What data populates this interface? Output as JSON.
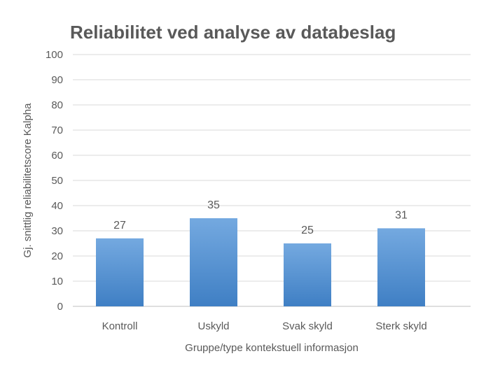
{
  "chart_data": {
    "type": "bar",
    "title": "Reliabilitet ved analyse av databeslag",
    "xlabel": "Gruppe/type kontekstuell informasjon",
    "ylabel": "Gj. snittlig reliabilitetscore  Kalpha",
    "categories": [
      "Kontroll",
      "Uskyld",
      "Svak skyld",
      "Sterk skyld"
    ],
    "values": [
      27,
      35,
      25,
      31
    ],
    "ylim": [
      0,
      100
    ],
    "yticks": [
      0,
      10,
      20,
      30,
      40,
      50,
      60,
      70,
      80,
      90,
      100
    ],
    "grid": true,
    "legend": "none",
    "colors": {
      "bar_top": "#74a9e0",
      "bar_bottom": "#3f7fc4",
      "grid": "#d9d9d9",
      "axis": "#bfbfbf",
      "text": "#595959",
      "title": "#595959"
    }
  }
}
